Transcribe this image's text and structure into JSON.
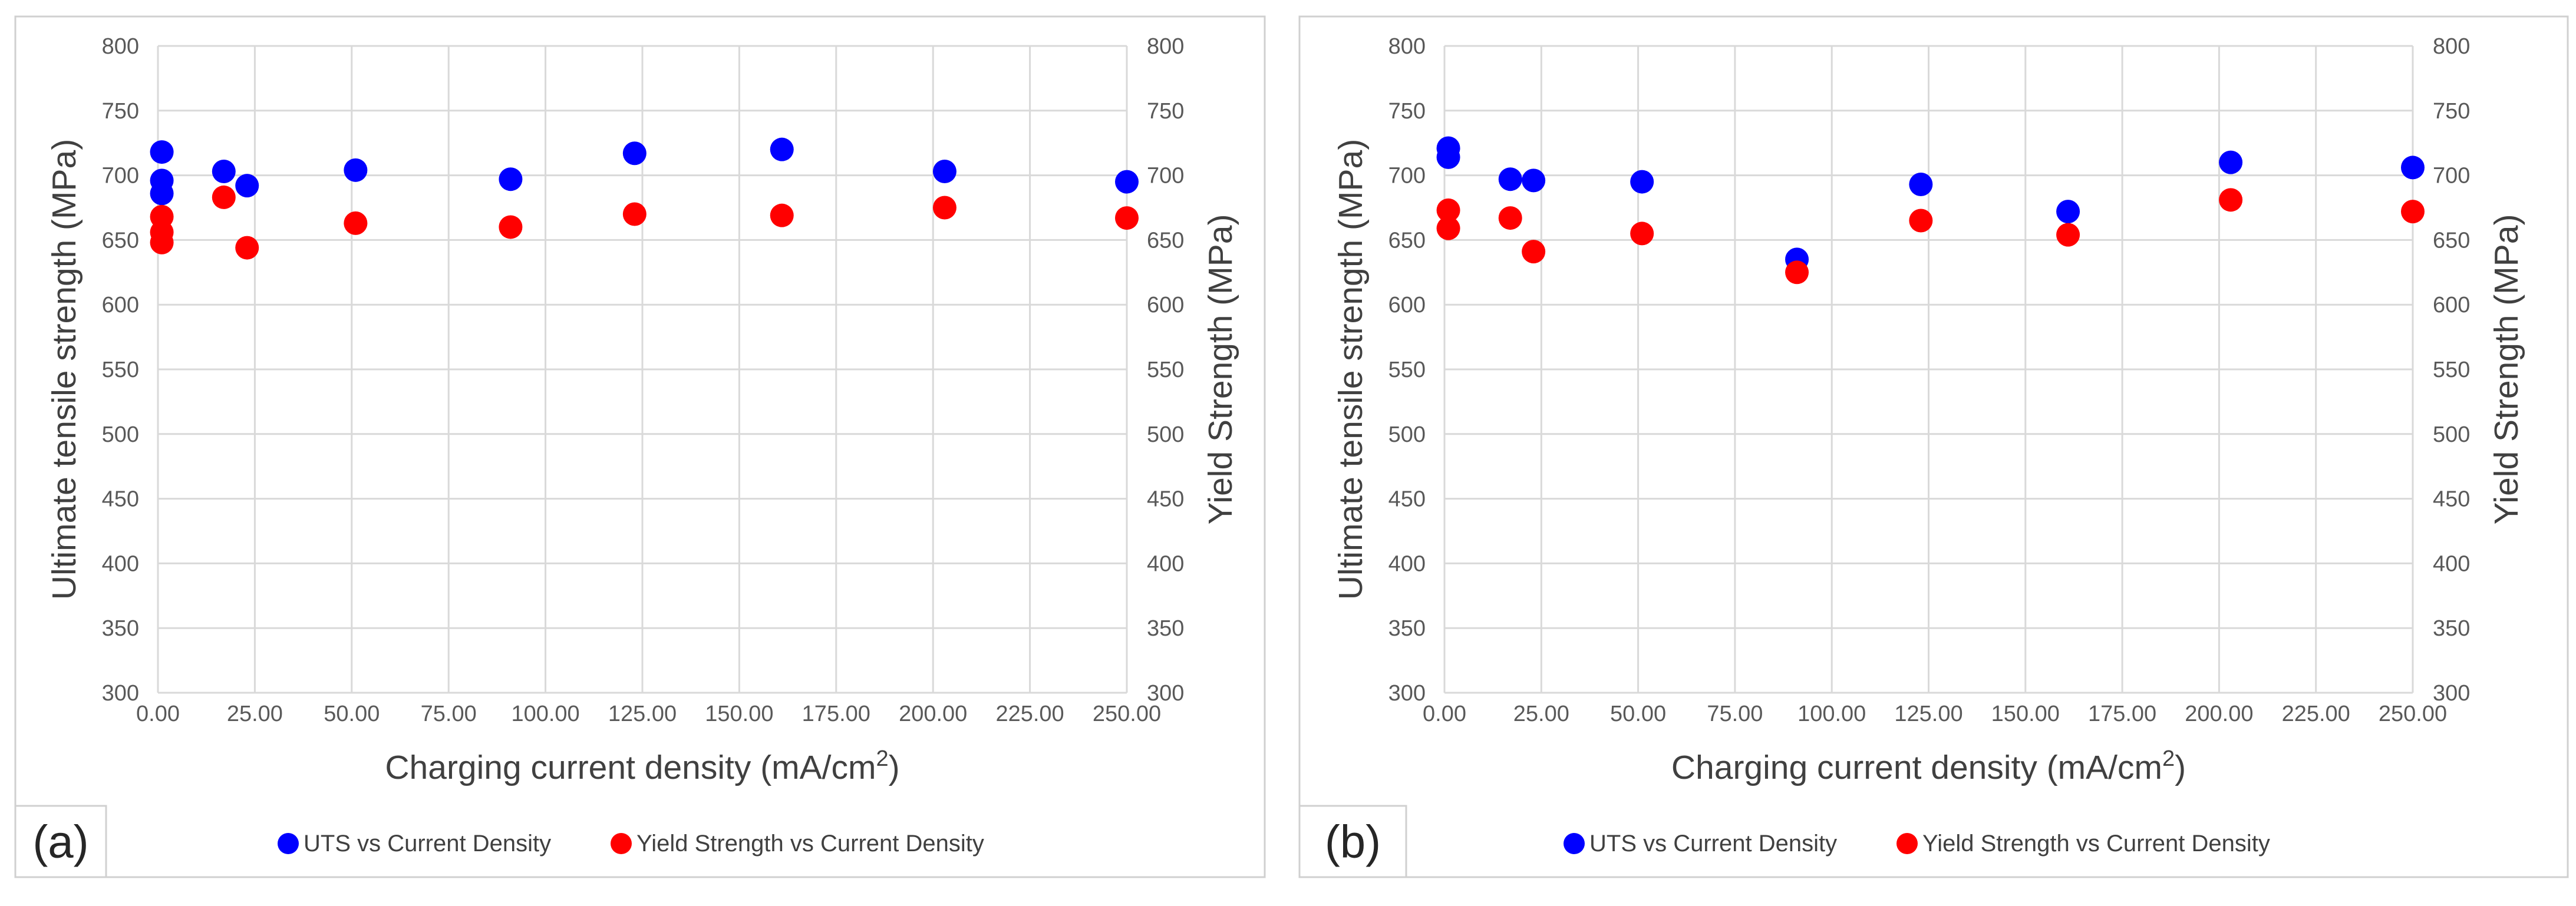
{
  "chart_data": [
    {
      "type": "scatter",
      "panel_label": "(a)",
      "xlabel": "Charging current density (mA/cm",
      "xlabel_sup": "2",
      "xlabel_close": ")",
      "ylabel": "Ultimate tensile strength (MPa)",
      "y2label": "Yield Strength (MPa)",
      "xlim": [
        0,
        250
      ],
      "ylim": [
        300,
        800
      ],
      "y2lim": [
        300,
        800
      ],
      "x_ticks": [
        "0.00",
        "25.00",
        "50.00",
        "75.00",
        "100.00",
        "125.00",
        "150.00",
        "175.00",
        "200.00",
        "225.00",
        "250.00"
      ],
      "y_ticks": [
        "300",
        "350",
        "400",
        "450",
        "500",
        "550",
        "600",
        "650",
        "700",
        "750",
        "800"
      ],
      "grid": true,
      "series": [
        {
          "name": "UTS vs Current Density",
          "axis": "left",
          "color": "#0000ff",
          "points": [
            [
              1,
              718
            ],
            [
              1,
              696
            ],
            [
              1,
              686
            ],
            [
              17,
              703
            ],
            [
              23,
              692
            ],
            [
              51,
              704
            ],
            [
              91,
              697
            ],
            [
              123,
              717
            ],
            [
              161,
              720
            ],
            [
              203,
              703
            ],
            [
              250,
              695
            ]
          ]
        },
        {
          "name": "Yield Strength vs Current Density",
          "axis": "right",
          "color": "#ff0000",
          "points": [
            [
              1,
              668
            ],
            [
              1,
              656
            ],
            [
              1,
              648
            ],
            [
              17,
              683
            ],
            [
              23,
              644
            ],
            [
              51,
              663
            ],
            [
              91,
              660
            ],
            [
              123,
              670
            ],
            [
              161,
              669
            ],
            [
              203,
              675
            ],
            [
              250,
              667
            ]
          ]
        }
      ]
    },
    {
      "type": "scatter",
      "panel_label": "(b)",
      "xlabel": "Charging current density (mA/cm",
      "xlabel_sup": "2",
      "xlabel_close": ")",
      "ylabel": "Ultimate tensile strength (MPa)",
      "y2label": "Yield Strength (MPa)",
      "xlim": [
        0,
        250
      ],
      "ylim": [
        300,
        800
      ],
      "y2lim": [
        300,
        800
      ],
      "x_ticks": [
        "0.00",
        "25.00",
        "50.00",
        "75.00",
        "100.00",
        "125.00",
        "150.00",
        "175.00",
        "200.00",
        "225.00",
        "250.00"
      ],
      "y_ticks": [
        "300",
        "350",
        "400",
        "450",
        "500",
        "550",
        "600",
        "650",
        "700",
        "750",
        "800"
      ],
      "grid": true,
      "series": [
        {
          "name": "UTS vs Current Density",
          "axis": "left",
          "color": "#0000ff",
          "points": [
            [
              1,
              721
            ],
            [
              1,
              714
            ],
            [
              17,
              697
            ],
            [
              23,
              696
            ],
            [
              51,
              695
            ],
            [
              91,
              635
            ],
            [
              123,
              693
            ],
            [
              161,
              672
            ],
            [
              203,
              710
            ],
            [
              250,
              706
            ]
          ]
        },
        {
          "name": "Yield Strength vs Current Density",
          "axis": "right",
          "color": "#ff0000",
          "points": [
            [
              1,
              673
            ],
            [
              1,
              659
            ],
            [
              17,
              667
            ],
            [
              23,
              641
            ],
            [
              51,
              655
            ],
            [
              91,
              625
            ],
            [
              123,
              665
            ],
            [
              161,
              654
            ],
            [
              203,
              681
            ],
            [
              250,
              672
            ]
          ]
        }
      ]
    }
  ]
}
